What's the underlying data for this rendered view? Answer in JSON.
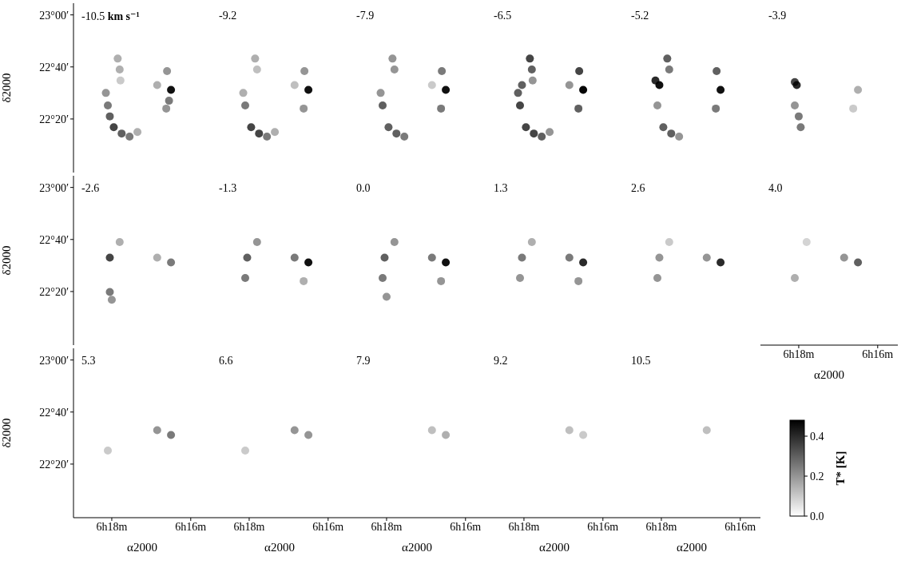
{
  "chart_data": {
    "type": "scatter",
    "xlabel": "α2000",
    "ylabel": "δ2000",
    "xlim": [
      18.97,
      15.49
    ],
    "ylim": [
      21.99,
      23.075
    ],
    "xticks": [
      {
        "value": 18,
        "label": "6h18m"
      },
      {
        "value": 16,
        "label": "6h16m"
      }
    ],
    "yticks": [
      {
        "value": 22.3333,
        "label": "22°20′"
      },
      {
        "value": 22.6667,
        "label": "22°40′"
      },
      {
        "value": 23,
        "label": "23°00′"
      }
    ],
    "colorbar": {
      "label": "T* [K]",
      "range": [
        0,
        0.48
      ],
      "ticks": [
        {
          "value": 0,
          "label": "0.0"
        },
        0.2,
        0.4
      ]
    },
    "panels": [
      {
        "velocity": -10.5,
        "unit": "km s⁻¹",
        "points": [
          [
            17.85,
            22.72,
            0.15
          ],
          [
            17.8,
            22.65,
            0.15
          ],
          [
            17.78,
            22.58,
            0.1
          ],
          [
            18.15,
            22.5,
            0.2
          ],
          [
            18.1,
            22.42,
            0.25
          ],
          [
            18.05,
            22.35,
            0.3
          ],
          [
            17.95,
            22.28,
            0.35
          ],
          [
            17.75,
            22.24,
            0.3
          ],
          [
            17.55,
            22.22,
            0.25
          ],
          [
            17.35,
            22.25,
            0.15
          ],
          [
            16.5,
            22.52,
            0.45
          ],
          [
            16.6,
            22.64,
            0.2
          ],
          [
            16.62,
            22.4,
            0.2
          ],
          [
            16.55,
            22.45,
            0.25
          ],
          [
            16.85,
            22.55,
            0.15
          ]
        ]
      },
      {
        "velocity": -9.2,
        "points": [
          [
            17.85,
            22.72,
            0.15
          ],
          [
            17.8,
            22.65,
            0.12
          ],
          [
            18.15,
            22.5,
            0.15
          ],
          [
            18.1,
            22.42,
            0.25
          ],
          [
            17.95,
            22.28,
            0.35
          ],
          [
            17.75,
            22.24,
            0.35
          ],
          [
            17.55,
            22.22,
            0.25
          ],
          [
            17.35,
            22.25,
            0.15
          ],
          [
            16.5,
            22.52,
            0.45
          ],
          [
            16.6,
            22.64,
            0.2
          ],
          [
            16.62,
            22.4,
            0.2
          ],
          [
            16.85,
            22.55,
            0.12
          ]
        ]
      },
      {
        "velocity": -7.9,
        "points": [
          [
            17.85,
            22.72,
            0.2
          ],
          [
            17.8,
            22.65,
            0.2
          ],
          [
            18.15,
            22.5,
            0.2
          ],
          [
            18.1,
            22.42,
            0.3
          ],
          [
            17.95,
            22.28,
            0.3
          ],
          [
            17.75,
            22.24,
            0.3
          ],
          [
            17.55,
            22.22,
            0.25
          ],
          [
            16.5,
            22.52,
            0.45
          ],
          [
            16.6,
            22.64,
            0.25
          ],
          [
            16.62,
            22.4,
            0.25
          ],
          [
            16.85,
            22.55,
            0.1
          ]
        ]
      },
      {
        "velocity": -6.5,
        "points": [
          [
            17.85,
            22.72,
            0.35
          ],
          [
            17.8,
            22.65,
            0.3
          ],
          [
            17.78,
            22.58,
            0.2
          ],
          [
            18.15,
            22.5,
            0.3
          ],
          [
            18.1,
            22.42,
            0.35
          ],
          [
            17.95,
            22.28,
            0.35
          ],
          [
            17.75,
            22.24,
            0.35
          ],
          [
            17.55,
            22.22,
            0.3
          ],
          [
            17.35,
            22.25,
            0.2
          ],
          [
            16.5,
            22.52,
            0.47
          ],
          [
            16.6,
            22.64,
            0.35
          ],
          [
            16.62,
            22.4,
            0.3
          ],
          [
            16.85,
            22.55,
            0.2
          ],
          [
            18.05,
            22.55,
            0.3
          ]
        ]
      },
      {
        "velocity": -5.2,
        "points": [
          [
            17.85,
            22.72,
            0.3
          ],
          [
            17.8,
            22.65,
            0.25
          ],
          [
            18.05,
            22.55,
            0.45
          ],
          [
            18.15,
            22.58,
            0.4
          ],
          [
            18.1,
            22.42,
            0.2
          ],
          [
            17.95,
            22.28,
            0.3
          ],
          [
            17.75,
            22.24,
            0.3
          ],
          [
            17.55,
            22.22,
            0.2
          ],
          [
            16.5,
            22.52,
            0.45
          ],
          [
            16.6,
            22.64,
            0.3
          ],
          [
            16.62,
            22.4,
            0.25
          ]
        ]
      },
      {
        "velocity": -3.9,
        "points": [
          [
            18.05,
            22.55,
            0.4
          ],
          [
            18.1,
            22.57,
            0.35
          ],
          [
            18.1,
            22.42,
            0.2
          ],
          [
            18.0,
            22.35,
            0.25
          ],
          [
            17.95,
            22.28,
            0.25
          ],
          [
            16.5,
            22.52,
            0.15
          ],
          [
            16.62,
            22.4,
            0.1
          ]
        ]
      },
      {
        "velocity": -2.6,
        "points": [
          [
            18.05,
            22.55,
            0.35
          ],
          [
            17.8,
            22.65,
            0.15
          ],
          [
            18.05,
            22.33,
            0.25
          ],
          [
            18.0,
            22.28,
            0.2
          ],
          [
            16.5,
            22.52,
            0.25
          ],
          [
            16.85,
            22.55,
            0.15
          ]
        ]
      },
      {
        "velocity": -1.3,
        "points": [
          [
            17.8,
            22.65,
            0.2
          ],
          [
            18.05,
            22.55,
            0.3
          ],
          [
            18.1,
            22.42,
            0.25
          ],
          [
            16.5,
            22.52,
            0.45
          ],
          [
            16.85,
            22.55,
            0.25
          ],
          [
            16.62,
            22.4,
            0.15
          ]
        ]
      },
      {
        "velocity": 0,
        "points": [
          [
            17.8,
            22.65,
            0.2
          ],
          [
            18.05,
            22.55,
            0.3
          ],
          [
            18.1,
            22.42,
            0.25
          ],
          [
            18.0,
            22.3,
            0.2
          ],
          [
            16.5,
            22.52,
            0.45
          ],
          [
            16.85,
            22.55,
            0.25
          ],
          [
            16.62,
            22.4,
            0.2
          ]
        ]
      },
      {
        "velocity": 1.3,
        "points": [
          [
            17.8,
            22.65,
            0.15
          ],
          [
            18.05,
            22.55,
            0.25
          ],
          [
            18.1,
            22.42,
            0.2
          ],
          [
            16.5,
            22.52,
            0.4
          ],
          [
            16.85,
            22.55,
            0.25
          ],
          [
            16.62,
            22.4,
            0.2
          ]
        ]
      },
      {
        "velocity": 2.6,
        "points": [
          [
            17.8,
            22.65,
            0.1
          ],
          [
            18.05,
            22.55,
            0.2
          ],
          [
            18.1,
            22.42,
            0.2
          ],
          [
            16.5,
            22.52,
            0.4
          ],
          [
            16.85,
            22.55,
            0.2
          ]
        ]
      },
      {
        "velocity": 4.0,
        "points": [
          [
            17.8,
            22.65,
            0.08
          ],
          [
            18.1,
            22.42,
            0.15
          ],
          [
            16.5,
            22.52,
            0.3
          ],
          [
            16.85,
            22.55,
            0.2
          ]
        ]
      },
      {
        "velocity": 5.3,
        "points": [
          [
            16.5,
            22.52,
            0.25
          ],
          [
            16.85,
            22.55,
            0.2
          ],
          [
            18.1,
            22.42,
            0.1
          ]
        ]
      },
      {
        "velocity": 6.6,
        "points": [
          [
            16.5,
            22.52,
            0.2
          ],
          [
            16.85,
            22.55,
            0.2
          ],
          [
            18.1,
            22.42,
            0.1
          ]
        ]
      },
      {
        "velocity": 7.9,
        "points": [
          [
            16.5,
            22.52,
            0.15
          ],
          [
            16.85,
            22.55,
            0.12
          ]
        ]
      },
      {
        "velocity": 9.2,
        "points": [
          [
            16.5,
            22.52,
            0.1
          ],
          [
            16.85,
            22.55,
            0.12
          ]
        ]
      },
      {
        "velocity": 10.5,
        "points": [
          [
            16.85,
            22.55,
            0.12
          ]
        ]
      }
    ]
  }
}
